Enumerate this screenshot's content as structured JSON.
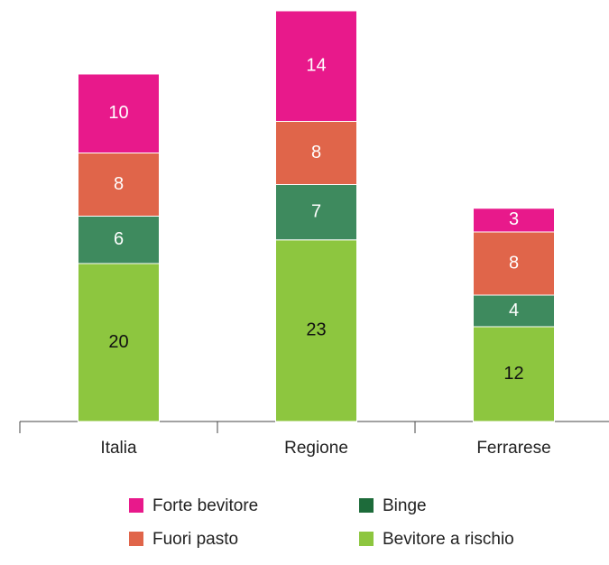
{
  "chart_data": {
    "type": "stacked_bar",
    "categories": [
      "Italia",
      "Regione",
      "Ferrarese"
    ],
    "series": [
      {
        "name": "Bevitore a rischio",
        "color": "#8dc63f",
        "values": [
          20,
          23,
          12
        ]
      },
      {
        "name": "Binge",
        "color": "#3e8a5e",
        "values": [
          6,
          7,
          4
        ]
      },
      {
        "name": "Fuori pasto",
        "color": "#e0654a",
        "values": [
          8,
          8,
          8
        ]
      },
      {
        "name": "Forte bevitore",
        "color": "#e8198b",
        "values": [
          10,
          14,
          3
        ]
      }
    ],
    "ylim": [
      0,
      52
    ]
  }
}
